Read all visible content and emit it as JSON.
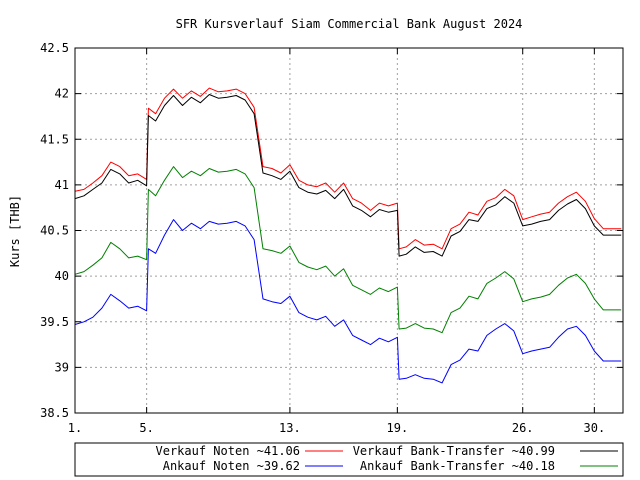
{
  "chart_data": {
    "type": "line",
    "title": "SFR Kursverlauf Siam Commercial Bank August 2024",
    "xlabel": "",
    "ylabel": "Kurs [THB]",
    "xlim": [
      1,
      31.6
    ],
    "ylim": [
      38.5,
      42.5
    ],
    "grid": true,
    "legend_position": "bottom",
    "x_ticks": [
      {
        "value": 1,
        "label": "1."
      },
      {
        "value": 5,
        "label": "5."
      },
      {
        "value": 13,
        "label": "13."
      },
      {
        "value": 19,
        "label": "19."
      },
      {
        "value": 26,
        "label": "26."
      },
      {
        "value": 30,
        "label": "30."
      }
    ],
    "y_ticks": [
      {
        "value": 38.5,
        "label": "38.5"
      },
      {
        "value": 39,
        "label": "39"
      },
      {
        "value": 39.5,
        "label": "39.5"
      },
      {
        "value": 40,
        "label": "40"
      },
      {
        "value": 40.5,
        "label": "40.5"
      },
      {
        "value": 41,
        "label": "41"
      },
      {
        "value": 41.5,
        "label": "41.5"
      },
      {
        "value": 42,
        "label": "42"
      },
      {
        "value": 42.5,
        "label": "42.5"
      }
    ],
    "x": [
      1,
      1.5,
      2,
      2.5,
      3,
      3.5,
      4,
      4.5,
      5,
      5.1,
      5.5,
      6,
      6.5,
      7,
      7.5,
      8,
      8.5,
      9,
      9.5,
      10,
      10.5,
      11,
      11.5,
      12,
      12.5,
      13,
      13.5,
      14,
      14.5,
      15,
      15.5,
      16,
      16.5,
      17,
      17.5,
      18,
      18.5,
      19,
      19.1,
      19.5,
      20,
      20.5,
      21,
      21.5,
      22,
      22.5,
      23,
      23.5,
      24,
      24.5,
      25,
      25.5,
      26,
      26.5,
      27,
      27.5,
      28,
      28.5,
      29,
      29.5,
      30,
      30.5,
      31,
      31.5
    ],
    "series": [
      {
        "name": "Verkauf Noten ~41.06",
        "color": "#ff0000",
        "values": [
          40.93,
          40.95,
          41.02,
          41.1,
          41.25,
          41.2,
          41.1,
          41.12,
          41.06,
          41.84,
          41.78,
          41.95,
          42.05,
          41.95,
          42.03,
          41.97,
          42.06,
          42.02,
          42.03,
          42.05,
          42.0,
          41.85,
          41.2,
          41.18,
          41.13,
          41.22,
          41.05,
          41.0,
          40.98,
          41.02,
          40.92,
          41.02,
          40.85,
          40.8,
          40.72,
          40.8,
          40.77,
          40.8,
          40.3,
          40.32,
          40.4,
          40.34,
          40.35,
          40.3,
          40.52,
          40.57,
          40.7,
          40.67,
          40.82,
          40.86,
          40.95,
          40.88,
          40.62,
          40.65,
          40.68,
          40.7,
          40.8,
          40.87,
          40.92,
          40.82,
          40.63,
          40.52,
          40.52,
          40.52
        ]
      },
      {
        "name": "Verkauf Bank-Transfer ~40.99",
        "color": "#000000",
        "values": [
          40.85,
          40.88,
          40.95,
          41.02,
          41.17,
          41.12,
          41.02,
          41.05,
          40.99,
          41.76,
          41.7,
          41.87,
          41.98,
          41.87,
          41.96,
          41.9,
          41.99,
          41.95,
          41.96,
          41.98,
          41.93,
          41.78,
          41.13,
          41.1,
          41.06,
          41.15,
          40.97,
          40.92,
          40.9,
          40.94,
          40.85,
          40.95,
          40.77,
          40.72,
          40.65,
          40.73,
          40.7,
          40.72,
          40.22,
          40.24,
          40.32,
          40.26,
          40.27,
          40.22,
          40.44,
          40.49,
          40.62,
          40.6,
          40.74,
          40.78,
          40.87,
          40.8,
          40.55,
          40.57,
          40.6,
          40.62,
          40.72,
          40.79,
          40.84,
          40.74,
          40.55,
          40.45,
          40.45,
          40.45
        ]
      },
      {
        "name": "Ankauf Noten ~39.62",
        "color": "#0000ff",
        "values": [
          39.47,
          39.5,
          39.55,
          39.65,
          39.8,
          39.73,
          39.65,
          39.67,
          39.62,
          40.3,
          40.25,
          40.45,
          40.62,
          40.5,
          40.58,
          40.52,
          40.6,
          40.57,
          40.58,
          40.6,
          40.55,
          40.4,
          39.75,
          39.72,
          39.7,
          39.78,
          39.6,
          39.55,
          39.52,
          39.56,
          39.45,
          39.52,
          39.35,
          39.3,
          39.25,
          39.32,
          39.28,
          39.33,
          38.87,
          38.88,
          38.92,
          38.88,
          38.87,
          38.83,
          39.03,
          39.08,
          39.2,
          39.18,
          39.35,
          39.42,
          39.48,
          39.4,
          39.15,
          39.18,
          39.2,
          39.22,
          39.33,
          39.42,
          39.45,
          39.35,
          39.18,
          39.07,
          39.07,
          39.07
        ]
      },
      {
        "name": "Ankauf Bank-Transfer ~40.18",
        "color": "#008000",
        "values": [
          40.02,
          40.05,
          40.12,
          40.2,
          40.37,
          40.3,
          40.2,
          40.22,
          40.18,
          40.95,
          40.88,
          41.05,
          41.2,
          41.08,
          41.15,
          41.1,
          41.18,
          41.14,
          41.15,
          41.17,
          41.12,
          40.97,
          40.3,
          40.28,
          40.25,
          40.33,
          40.15,
          40.1,
          40.07,
          40.11,
          40.0,
          40.08,
          39.9,
          39.85,
          39.8,
          39.87,
          39.83,
          39.88,
          39.42,
          39.43,
          39.48,
          39.43,
          39.42,
          39.38,
          39.6,
          39.65,
          39.78,
          39.75,
          39.92,
          39.98,
          40.05,
          39.97,
          39.72,
          39.75,
          39.77,
          39.8,
          39.9,
          39.98,
          40.02,
          39.92,
          39.75,
          39.63,
          39.63,
          39.63
        ]
      }
    ]
  }
}
